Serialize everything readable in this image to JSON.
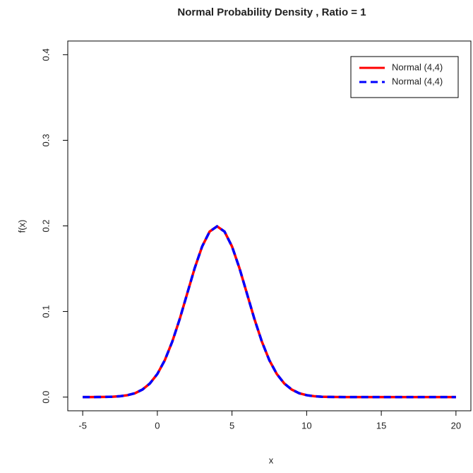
{
  "chart_data": {
    "type": "line",
    "title": "Normal Probability Density , Ratio = 1",
    "xlabel": "x",
    "ylabel": "f(x)",
    "x": [
      -5,
      -4.5,
      -4,
      -3.5,
      -3,
      -2.5,
      -2,
      -1.5,
      -1,
      -0.5,
      0,
      0.5,
      1,
      1.5,
      2,
      2.5,
      3,
      3.5,
      4,
      4.5,
      5,
      5.5,
      6,
      6.5,
      7,
      7.5,
      8,
      8.5,
      9,
      9.5,
      10,
      10.5,
      11,
      11.5,
      12,
      12.5,
      13,
      13.5,
      14,
      14.5,
      15,
      15.5,
      16,
      16.5,
      17,
      17.5,
      18,
      18.5,
      19,
      19.5,
      20
    ],
    "series": [
      {
        "name": "Normal (4,4)",
        "color": "#ff0000",
        "dash": false,
        "values": [
          0,
          0,
          0.0001,
          0.0002,
          0.0004,
          0.001,
          0.0022,
          0.0045,
          0.0088,
          0.0159,
          0.027,
          0.0431,
          0.0648,
          0.0913,
          0.121,
          0.1506,
          0.176,
          0.1933,
          0.1995,
          0.1933,
          0.176,
          0.1506,
          0.121,
          0.0913,
          0.0648,
          0.0431,
          0.027,
          0.0159,
          0.0088,
          0.0045,
          0.0022,
          0.001,
          0.0004,
          0.0002,
          0.0001,
          0,
          0,
          0,
          0,
          0,
          0,
          0,
          0,
          0,
          0,
          0,
          0,
          0,
          0,
          0,
          0
        ]
      },
      {
        "name": "Normal (4,4)",
        "color": "#0000ff",
        "dash": true,
        "values": [
          0,
          0,
          0.0001,
          0.0002,
          0.0004,
          0.001,
          0.0022,
          0.0045,
          0.0088,
          0.0159,
          0.027,
          0.0431,
          0.0648,
          0.0913,
          0.121,
          0.1506,
          0.176,
          0.1933,
          0.1995,
          0.1933,
          0.176,
          0.1506,
          0.121,
          0.0913,
          0.0648,
          0.0431,
          0.027,
          0.0159,
          0.0088,
          0.0045,
          0.0022,
          0.001,
          0.0004,
          0.0002,
          0.0001,
          0,
          0,
          0,
          0,
          0,
          0,
          0,
          0,
          0,
          0,
          0,
          0,
          0,
          0,
          0,
          0
        ]
      }
    ],
    "xlim": [
      -6,
      21
    ],
    "xticks": [
      -5,
      0,
      5,
      10,
      15,
      20
    ],
    "ylim": [
      -0.016,
      0.416
    ],
    "yticks": [
      {
        "value": 0,
        "label": "0.0"
      },
      0.1,
      0.2,
      0.3,
      0.4
    ],
    "legend": "top-right",
    "grid": false
  }
}
